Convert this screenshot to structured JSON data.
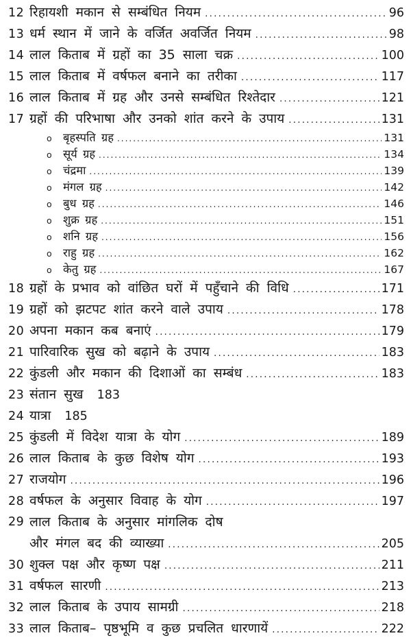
{
  "page": {
    "background_color": "#ffffff",
    "text_color": "#171717"
  },
  "toc": {
    "bullet_char": "o",
    "items": [
      {
        "num": "12",
        "title": "रिहायशी मकान से सम्बंधित नियम",
        "page": "96",
        "leader": true
      },
      {
        "num": "13",
        "title": "धर्म स्थान में जाने के वर्जित अवर्जित नियम",
        "page": "98",
        "leader": true
      },
      {
        "num": "14",
        "title": "लाल किताब में ग्रहों का 35 साला चक्र",
        "page": "100",
        "leader": true
      },
      {
        "num": "15",
        "title": "लाल किताब में वर्षफल बनाने का तरीका",
        "page": "117",
        "leader": true
      },
      {
        "num": "16",
        "title": "लाल किताब में ग्रह और उनसे सम्बंधित रिश्तेदार",
        "page": "121",
        "leader": true
      },
      {
        "num": "17",
        "title": "ग्रहों की परिभाषा और उनको शांत करने के उपाय",
        "page": "131",
        "leader": true,
        "subitems": [
          {
            "title": "बृहस्पति ग्रह",
            "page": "131"
          },
          {
            "title": "सूर्य ग्रह",
            "page": "134"
          },
          {
            "title": "चंद्रमा",
            "page": "139"
          },
          {
            "title": "मंगल ग्रह",
            "page": "142"
          },
          {
            "title": "बुध ग्रह",
            "page": "146"
          },
          {
            "title": "शुक्र ग्रह",
            "page": "151"
          },
          {
            "title": "शनि ग्रह",
            "page": "156"
          },
          {
            "title": "राहु ग्रह",
            "page": "162"
          },
          {
            "title": "केतु ग्रह",
            "page": "167"
          }
        ]
      },
      {
        "num": "18",
        "title": "ग्रहों के प्रभाव को वांछित घरों में पहुँचाने की विधि",
        "page": "171",
        "leader": true
      },
      {
        "num": "19",
        "title": "ग्रहों को झटपट शांत करने वाले उपाय",
        "page": "178",
        "leader": true
      },
      {
        "num": "20",
        "title": "अपना मकान कब बनाएं",
        "page": "179",
        "leader": true
      },
      {
        "num": "21",
        "title": "पारिवारिक सुख को बढ़ाने के उपाय",
        "page": "183",
        "leader": true
      },
      {
        "num": "22",
        "title": "कुंडली और मकान की दिशाओं का सम्बंध",
        "page": "183",
        "leader": true
      },
      {
        "num": "23",
        "title": "संतान सुख",
        "page": "183",
        "leader": false
      },
      {
        "num": "24",
        "title": "यात्रा",
        "page": "185",
        "leader": false
      },
      {
        "num": "25",
        "title": "कुंडली में विदेश यात्रा के योग",
        "page": "189",
        "leader": true
      },
      {
        "num": "26",
        "title": "लाल किताब के कुछ विशेष योग",
        "page": "193",
        "leader": true
      },
      {
        "num": "27",
        "title": "राजयोग",
        "page": "196",
        "leader": true
      },
      {
        "num": "28",
        "title": "वर्षफल के अनुसार विवाह के योग",
        "page": "197",
        "leader": true
      },
      {
        "num": "29",
        "title": "लाल किताब के अनुसार मांगलिक दोष",
        "title_line2": "और मंगल बद की व्याख्या",
        "page": "205",
        "leader": true
      },
      {
        "num": "30",
        "title": "शुक्ल पक्ष और कृष्ण पक्ष",
        "page": "211",
        "leader": true
      },
      {
        "num": "31",
        "title": "वर्षफल सारणी",
        "page": "213",
        "leader": true
      },
      {
        "num": "32",
        "title": "लाल किताब के उपाय सामग्री",
        "page": "218",
        "leader": true
      },
      {
        "num": "33",
        "title": "लाल किताब– पृष्ठभूमि व कुछ प्रचलित धारणायें",
        "page": "222",
        "leader": true
      }
    ]
  }
}
